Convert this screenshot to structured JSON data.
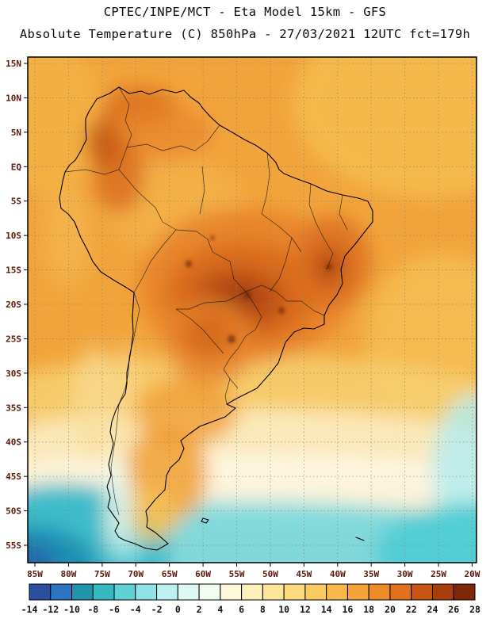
{
  "header": {
    "title_line1": "CPTEC/INPE/MCT -  Eta Model 15km - GFS",
    "title_line2": "Absolute Temperature (C) 850hPa - 27/03/2021 12UTC fct=179h"
  },
  "map": {
    "lat_labels": [
      "15N",
      "10N",
      "5N",
      "EQ",
      "5S",
      "10S",
      "15S",
      "20S",
      "25S",
      "30S",
      "35S",
      "40S",
      "45S",
      "50S",
      "55S"
    ],
    "lon_labels": [
      "85W",
      "80W",
      "75W",
      "70W",
      "65W",
      "60W",
      "55W",
      "50W",
      "45W",
      "40W",
      "35W",
      "30W",
      "25W",
      "20W"
    ]
  },
  "colorbar": {
    "tick_labels": [
      "-14",
      "-12",
      "-10",
      "-8",
      "-6",
      "-4",
      "-2",
      "0",
      "2",
      "4",
      "6",
      "8",
      "10",
      "12",
      "14",
      "16",
      "18",
      "20",
      "22",
      "24",
      "26",
      "28"
    ],
    "cell_colors": [
      "#2a4f9e",
      "#2e74c2",
      "#1f94ab",
      "#36b8c0",
      "#5fd2d6",
      "#8fe3e6",
      "#bdf0f0",
      "#ddf8f5",
      "#f3fcf0",
      "#fdf8da",
      "#fdf0ba",
      "#fde69a",
      "#fdda7d",
      "#fcca61",
      "#fab84c",
      "#f4a338",
      "#ee8c29",
      "#e0711d",
      "#c95514",
      "#aa3d0c",
      "#7f2806"
    ]
  }
}
